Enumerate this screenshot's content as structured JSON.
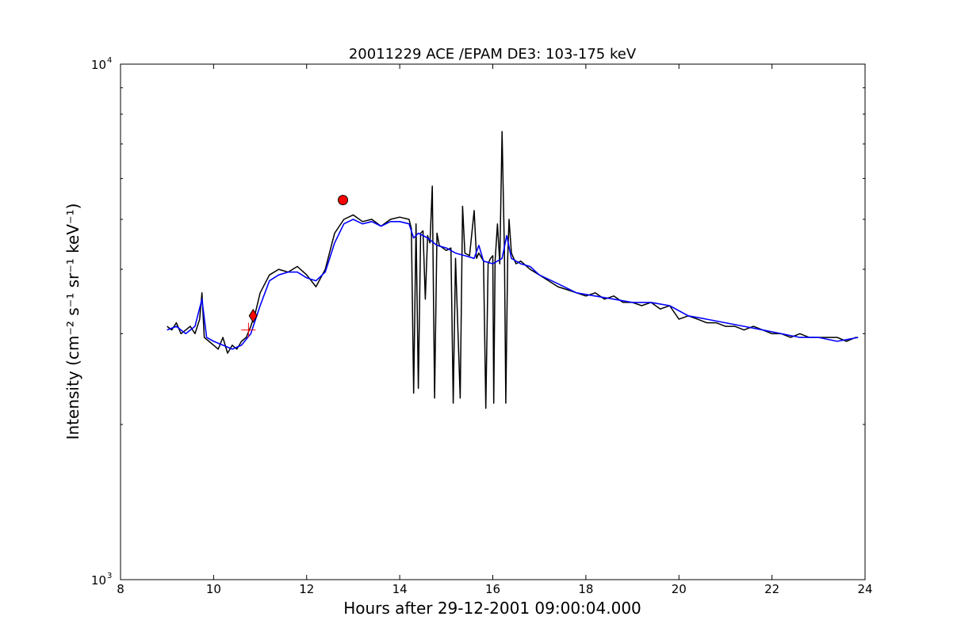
{
  "chart_data": {
    "type": "line",
    "title": "20011229 ACE /EPAM DE3: 103-175 keV",
    "xlabel": "Hours after 29-12-2001 09:00:04.000",
    "ylabel": "Intensity (cm⁻² s⁻¹ sr⁻¹ keV⁻¹)",
    "xlim": [
      8,
      24
    ],
    "ylim": [
      1000,
      10000
    ],
    "yscale": "log",
    "grid": false,
    "x_ticks": [
      8,
      10,
      12,
      14,
      16,
      18,
      20,
      22,
      24
    ],
    "x_tick_labels": [
      "8",
      "10",
      "12",
      "14",
      "16",
      "18",
      "20",
      "22",
      "24"
    ],
    "y_tick_labels": [
      {
        "value": 1000,
        "base": "10",
        "exp": "3"
      },
      {
        "value": 10000,
        "base": "10",
        "exp": "4"
      }
    ],
    "series_colors": {
      "raw": "#000000",
      "smoothed": "#0000ff"
    },
    "series": [
      {
        "style": "raw-black",
        "x": [
          9.0,
          9.1,
          9.2,
          9.3,
          9.4,
          9.5,
          9.6,
          9.7,
          9.75,
          9.8,
          9.9,
          10.0,
          10.1,
          10.2,
          10.3,
          10.4,
          10.5,
          10.6,
          10.7,
          10.8,
          10.9,
          11.0,
          11.2,
          11.4,
          11.6,
          11.8,
          12.0,
          12.2,
          12.4,
          12.6,
          12.8,
          13.0,
          13.2,
          13.4,
          13.6,
          13.8,
          14.0,
          14.2,
          14.25,
          14.3,
          14.35,
          14.4,
          14.45,
          14.5,
          14.55,
          14.6,
          14.65,
          14.7,
          14.75,
          14.8,
          14.85,
          15.0,
          15.1,
          15.15,
          15.2,
          15.3,
          15.35,
          15.4,
          15.5,
          15.6,
          15.65,
          15.7,
          15.8,
          15.85,
          15.9,
          15.95,
          16.0,
          16.02,
          16.05,
          16.1,
          16.15,
          16.2,
          16.25,
          16.28,
          16.32,
          16.35,
          16.4,
          16.45,
          16.5,
          16.6,
          16.8,
          17.0,
          17.2,
          17.4,
          17.6,
          17.8,
          18.0,
          18.2,
          18.4,
          18.6,
          18.8,
          19.0,
          19.2,
          19.4,
          19.6,
          19.8,
          20.0,
          20.2,
          20.4,
          20.6,
          20.8,
          21.0,
          21.2,
          21.4,
          21.6,
          21.8,
          22.0,
          22.2,
          22.4,
          22.6,
          22.8,
          23.0,
          23.2,
          23.4,
          23.6,
          23.8,
          23.85
        ],
        "y": [
          3100,
          3050,
          3150,
          3000,
          3050,
          3100,
          3000,
          3200,
          3600,
          2950,
          2900,
          2850,
          2800,
          2950,
          2750,
          2850,
          2800,
          2900,
          2950,
          3100,
          3300,
          3600,
          3900,
          4000,
          3950,
          4050,
          3900,
          3700,
          4000,
          4700,
          5000,
          5100,
          4950,
          5000,
          4850,
          5000,
          5050,
          5000,
          4800,
          2300,
          4900,
          2350,
          4700,
          4750,
          3500,
          4650,
          4500,
          5800,
          2250,
          4700,
          4450,
          4350,
          4400,
          2200,
          4200,
          2250,
          5300,
          4300,
          4250,
          5200,
          4200,
          4300,
          4150,
          2150,
          4100,
          4200,
          4250,
          2200,
          4150,
          4900,
          4100,
          7400,
          4300,
          2200,
          4200,
          5000,
          4300,
          4200,
          4100,
          4150,
          4000,
          3900,
          3800,
          3700,
          3650,
          3600,
          3550,
          3600,
          3500,
          3550,
          3450,
          3450,
          3400,
          3450,
          3350,
          3400,
          3200,
          3250,
          3200,
          3150,
          3150,
          3100,
          3100,
          3050,
          3100,
          3050,
          3000,
          3000,
          2950,
          3000,
          2950,
          2950,
          2950,
          2950,
          2900,
          2950,
          2950
        ]
      },
      {
        "style": "smoothed-blue",
        "x": [
          9.0,
          9.2,
          9.4,
          9.6,
          9.75,
          9.85,
          10.0,
          10.2,
          10.4,
          10.6,
          10.8,
          11.0,
          11.2,
          11.4,
          11.6,
          11.8,
          12.0,
          12.2,
          12.4,
          12.6,
          12.8,
          13.0,
          13.2,
          13.4,
          13.6,
          13.8,
          14.0,
          14.2,
          14.3,
          14.4,
          14.6,
          14.8,
          15.0,
          15.2,
          15.4,
          15.6,
          15.7,
          15.8,
          16.0,
          16.2,
          16.3,
          16.4,
          16.6,
          16.8,
          17.0,
          17.4,
          17.8,
          18.2,
          18.6,
          19.0,
          19.4,
          19.8,
          20.2,
          20.6,
          21.0,
          21.4,
          21.8,
          22.2,
          22.6,
          23.0,
          23.4,
          23.85
        ],
        "y": [
          3050,
          3100,
          3000,
          3100,
          3500,
          2950,
          2900,
          2850,
          2800,
          2850,
          3000,
          3400,
          3800,
          3900,
          3950,
          3950,
          3850,
          3800,
          3950,
          4500,
          4900,
          5000,
          4900,
          4950,
          4850,
          4950,
          4950,
          4900,
          4600,
          4700,
          4600,
          4450,
          4400,
          4300,
          4250,
          4200,
          4450,
          4150,
          4100,
          4200,
          4650,
          4200,
          4100,
          4050,
          3900,
          3750,
          3600,
          3550,
          3500,
          3450,
          3450,
          3400,
          3250,
          3200,
          3150,
          3100,
          3050,
          3000,
          2950,
          2950,
          2900,
          2950
        ]
      }
    ],
    "markers": [
      {
        "type": "circle",
        "color": "#ff0000",
        "x": 12.78,
        "y": 5450
      },
      {
        "type": "diamond",
        "color": "#ff0000",
        "x": 10.85,
        "y": 3250
      },
      {
        "type": "plus",
        "color": "#ff0000",
        "x": 10.75,
        "y": 3050
      }
    ]
  }
}
